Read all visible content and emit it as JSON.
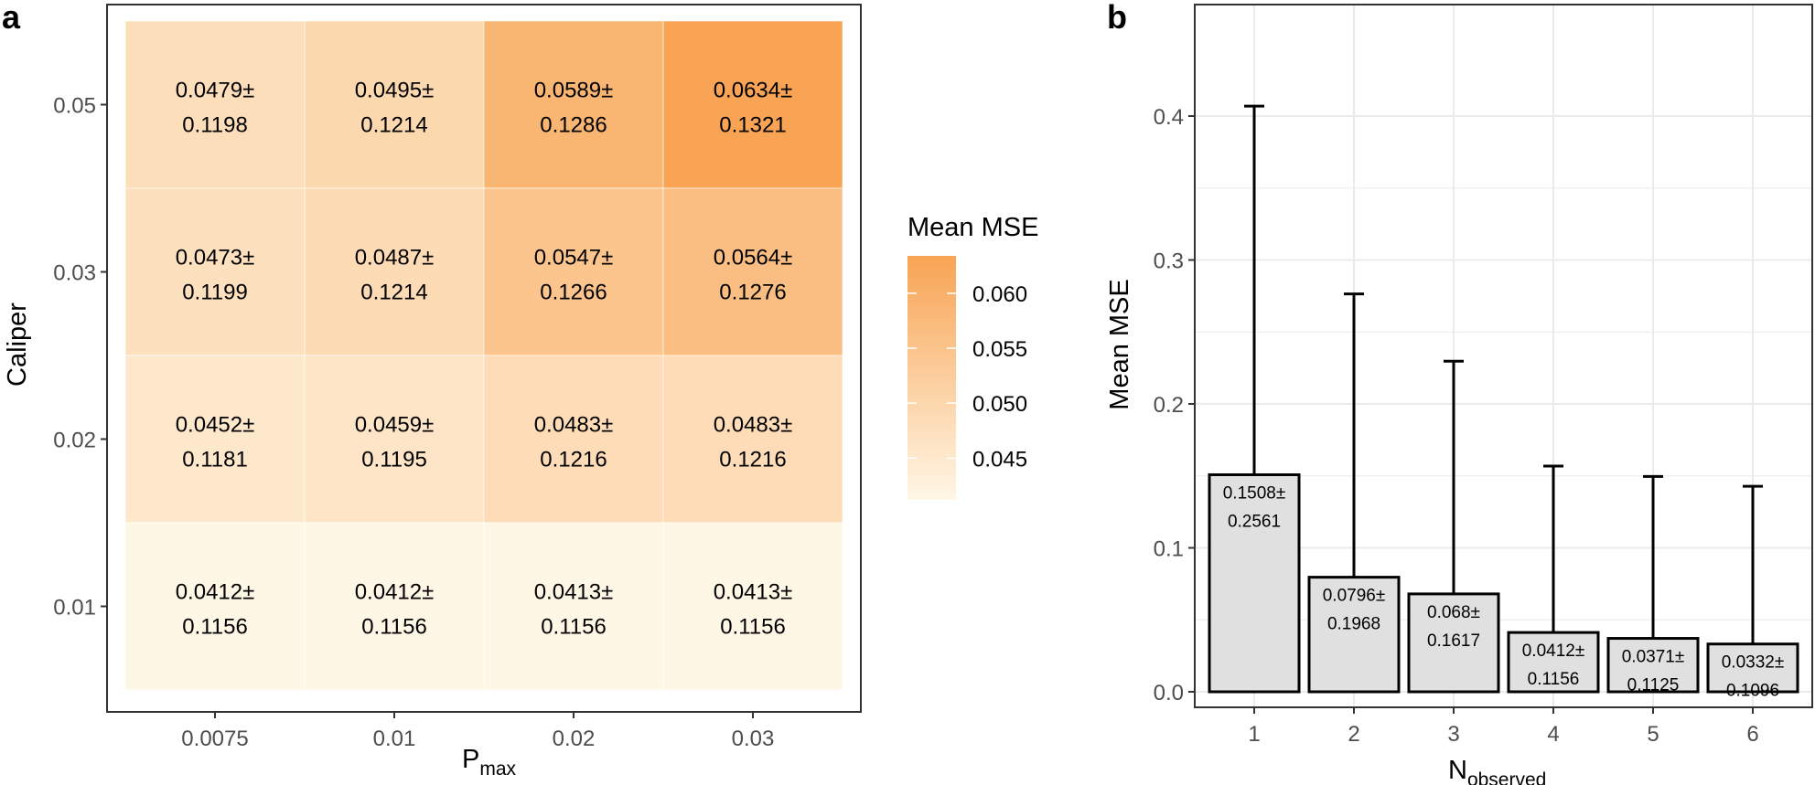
{
  "chart_data": [
    {
      "panel": "a",
      "type": "heatmap",
      "title": "",
      "xlabel": "P",
      "xlabel_subscript": "max",
      "ylabel": "Caliper",
      "x_categories": [
        "0.0075",
        "0.01",
        "0.02",
        "0.03"
      ],
      "y_categories": [
        "0.01",
        "0.02",
        "0.03",
        "0.05"
      ],
      "cells": [
        {
          "x": "0.0075",
          "y": "0.05",
          "mean": 0.0479,
          "sd": 0.1198,
          "line1": "0.0479±",
          "line2": "0.1198"
        },
        {
          "x": "0.01",
          "y": "0.05",
          "mean": 0.0495,
          "sd": 0.1214,
          "line1": "0.0495±",
          "line2": "0.1214"
        },
        {
          "x": "0.02",
          "y": "0.05",
          "mean": 0.0589,
          "sd": 0.1286,
          "line1": "0.0589±",
          "line2": "0.1286"
        },
        {
          "x": "0.03",
          "y": "0.05",
          "mean": 0.0634,
          "sd": 0.1321,
          "line1": "0.0634±",
          "line2": "0.1321"
        },
        {
          "x": "0.0075",
          "y": "0.03",
          "mean": 0.0473,
          "sd": 0.1199,
          "line1": "0.0473±",
          "line2": "0.1199"
        },
        {
          "x": "0.01",
          "y": "0.03",
          "mean": 0.0487,
          "sd": 0.1214,
          "line1": "0.0487±",
          "line2": "0.1214"
        },
        {
          "x": "0.02",
          "y": "0.03",
          "mean": 0.0547,
          "sd": 0.1266,
          "line1": "0.0547±",
          "line2": "0.1266"
        },
        {
          "x": "0.03",
          "y": "0.03",
          "mean": 0.0564,
          "sd": 0.1276,
          "line1": "0.0564±",
          "line2": "0.1276"
        },
        {
          "x": "0.0075",
          "y": "0.02",
          "mean": 0.0452,
          "sd": 0.1181,
          "line1": "0.0452±",
          "line2": "0.1181"
        },
        {
          "x": "0.01",
          "y": "0.02",
          "mean": 0.0459,
          "sd": 0.1195,
          "line1": "0.0459±",
          "line2": "0.1195"
        },
        {
          "x": "0.02",
          "y": "0.02",
          "mean": 0.0483,
          "sd": 0.1216,
          "line1": "0.0483±",
          "line2": "0.1216"
        },
        {
          "x": "0.03",
          "y": "0.02",
          "mean": 0.0483,
          "sd": 0.1216,
          "line1": "0.0483±",
          "line2": "0.1216"
        },
        {
          "x": "0.0075",
          "y": "0.01",
          "mean": 0.0412,
          "sd": 0.1156,
          "line1": "0.0412±",
          "line2": "0.1156"
        },
        {
          "x": "0.01",
          "y": "0.01",
          "mean": 0.0412,
          "sd": 0.1156,
          "line1": "0.0412±",
          "line2": "0.1156"
        },
        {
          "x": "0.02",
          "y": "0.01",
          "mean": 0.0413,
          "sd": 0.1156,
          "line1": "0.0413±",
          "line2": "0.1156"
        },
        {
          "x": "0.03",
          "y": "0.01",
          "mean": 0.0413,
          "sd": 0.1156,
          "line1": "0.0413±",
          "line2": "0.1156"
        }
      ],
      "legend": {
        "title": "Mean MSE",
        "position": "right",
        "ticks": [
          "0.060",
          "0.055",
          "0.050",
          "0.045"
        ],
        "tick_values": [
          0.06,
          0.055,
          0.05,
          0.045
        ],
        "range": [
          0.0412,
          0.0634
        ],
        "color_low": "#fff7e6",
        "color_high": "#f8a454"
      }
    },
    {
      "panel": "b",
      "type": "bar",
      "title": "",
      "xlabel": "N",
      "xlabel_subscript": "observed",
      "ylabel": "Mean MSE",
      "categories": [
        "1",
        "2",
        "3",
        "4",
        "5",
        "6"
      ],
      "values": [
        0.1508,
        0.0796,
        0.068,
        0.0412,
        0.0371,
        0.0332
      ],
      "errors": [
        0.2561,
        0.1968,
        0.1617,
        0.1156,
        0.1125,
        0.1096
      ],
      "labels_line1": [
        "0.1508±",
        "0.0796±",
        "0.068±",
        "0.0412±",
        "0.0371±",
        "0.0332±"
      ],
      "labels_line2": [
        "0.2561",
        "0.1968",
        "0.1617",
        "0.1156",
        "0.1125",
        "0.1096"
      ],
      "yticks": [
        "0.0",
        "0.1",
        "0.2",
        "0.3",
        "0.4"
      ],
      "ytick_values": [
        0.0,
        0.1,
        0.2,
        0.3,
        0.4
      ],
      "ylim": [
        -0.01,
        0.42
      ],
      "grid": true,
      "bar_fill": "#e0e0e0",
      "bar_stroke": "#000000"
    }
  ],
  "panel_labels": {
    "a": "a",
    "b": "b"
  }
}
